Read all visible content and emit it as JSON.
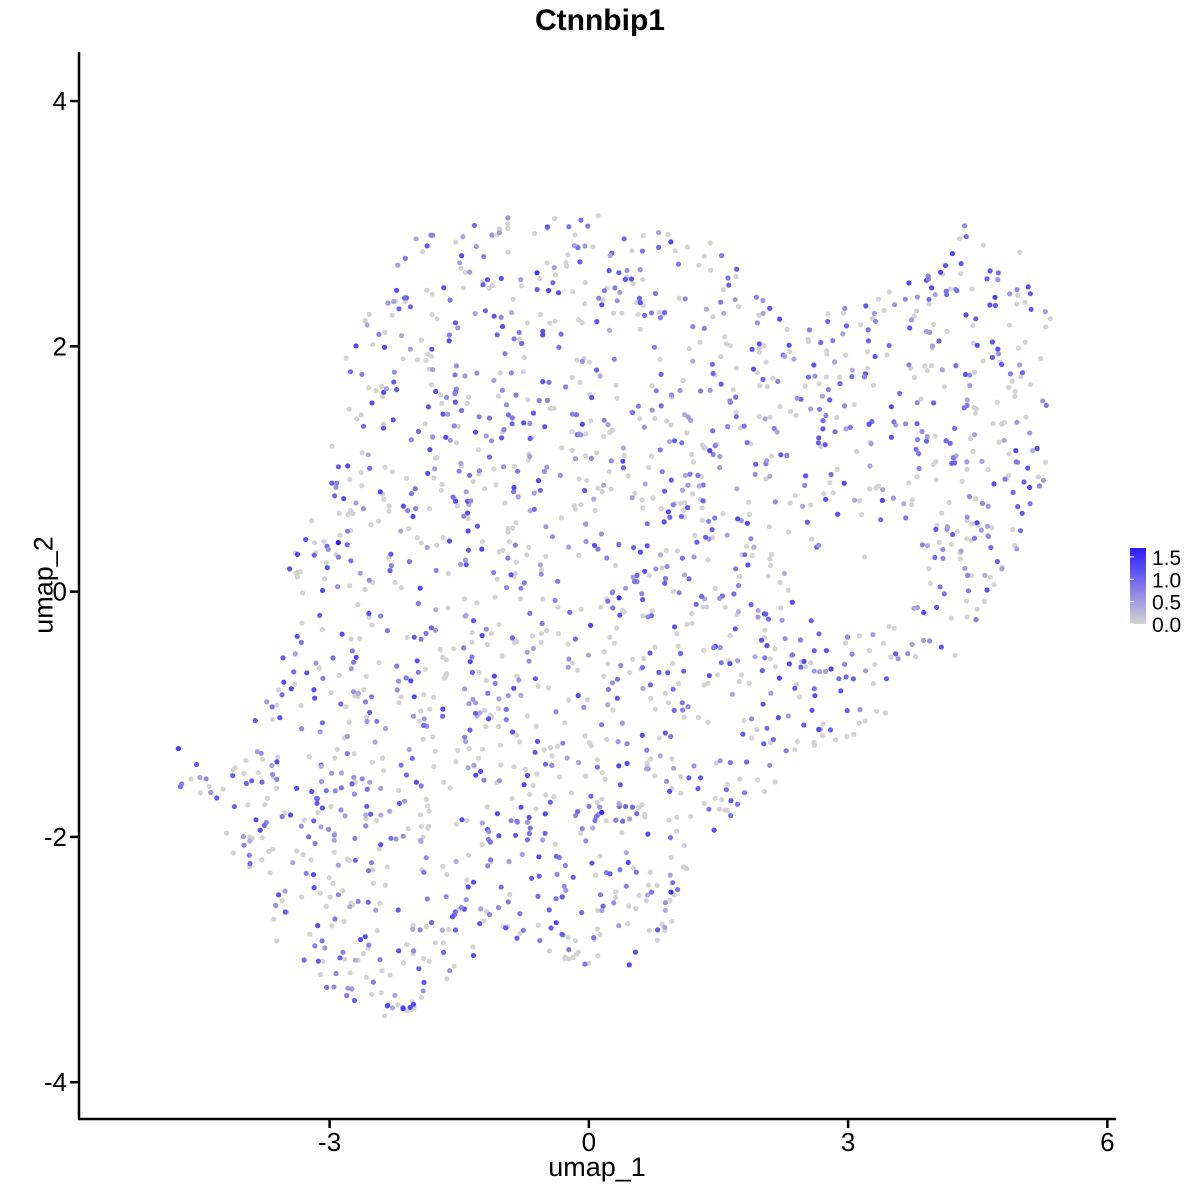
{
  "chart_data": {
    "type": "scatter",
    "title": "Ctnnbip1",
    "xlabel": "umap_1",
    "ylabel": "umap_2",
    "xlim": [
      -5.9,
      6.1
    ],
    "ylim": [
      -4.3,
      4.4
    ],
    "xticks": [
      -3,
      0,
      3,
      6
    ],
    "yticks": [
      -4,
      -2,
      0,
      2,
      4
    ],
    "grid": false,
    "legend": {
      "position": "right",
      "type": "colorbar",
      "labels": [
        "1.5",
        "1.0",
        "0.5",
        "0.0"
      ],
      "range": [
        0,
        1.7
      ],
      "colors": {
        "low": "#d3d3d3",
        "high": "#2b1cff"
      }
    },
    "point_size": 2.6,
    "n_points": 2000,
    "region_outline": [
      [
        -4.7,
        -1.3
      ],
      [
        -4.2,
        -1.5
      ],
      [
        -3.9,
        -1.1
      ],
      [
        -3.4,
        -0.3
      ],
      [
        -3.5,
        0.2
      ],
      [
        -3.0,
        1.0
      ],
      [
        -2.9,
        1.8
      ],
      [
        -2.5,
        2.4
      ],
      [
        -2.0,
        2.9
      ],
      [
        -1.2,
        3.05
      ],
      [
        -0.3,
        3.05
      ],
      [
        0.2,
        3.1
      ],
      [
        1.0,
        2.9
      ],
      [
        1.6,
        2.85
      ],
      [
        1.8,
        2.5
      ],
      [
        2.5,
        2.2
      ],
      [
        3.3,
        2.4
      ],
      [
        3.9,
        2.6
      ],
      [
        4.4,
        3.05
      ],
      [
        5.0,
        2.8
      ],
      [
        5.35,
        2.3
      ],
      [
        5.3,
        1.3
      ],
      [
        5.3,
        0.9
      ],
      [
        5.0,
        0.4
      ],
      [
        4.6,
        -0.1
      ],
      [
        4.2,
        -0.6
      ],
      [
        3.7,
        -0.6
      ],
      [
        3.3,
        -0.8
      ],
      [
        3.5,
        -1.0
      ],
      [
        3.0,
        -1.2
      ],
      [
        2.3,
        -1.5
      ],
      [
        1.4,
        -2.0
      ],
      [
        1.0,
        -2.5
      ],
      [
        0.95,
        -2.8
      ],
      [
        0.5,
        -3.05
      ],
      [
        -0.1,
        -3.05
      ],
      [
        -1.3,
        -2.7
      ],
      [
        -1.3,
        -3.05
      ],
      [
        -2.0,
        -3.4
      ],
      [
        -2.3,
        -3.5
      ],
      [
        -3.0,
        -3.25
      ],
      [
        -3.6,
        -2.9
      ],
      [
        -4.2,
        -2.3
      ],
      [
        -4.25,
        -1.7
      ],
      [
        -4.6,
        -1.8
      ],
      [
        -4.9,
        -1.4
      ]
    ],
    "empty_region": [
      [
        3.0,
        0.75
      ],
      [
        4.0,
        0.3
      ],
      [
        3.5,
        -0.2
      ],
      [
        2.7,
        -0.4
      ],
      [
        2.5,
        0.2
      ]
    ],
    "highlighted_points": [
      {
        "x": -2.9,
        "y": 0.4,
        "value": 1.7
      },
      {
        "x": 0.35,
        "y": -0.05,
        "value": 1.6
      },
      {
        "x": 0.15,
        "y": -1.8,
        "value": 1.55
      },
      {
        "x": 0.95,
        "y": -2.45,
        "value": 1.5
      },
      {
        "x": -2.15,
        "y": -3.4,
        "value": 1.45
      },
      {
        "x": -4.75,
        "y": -1.28,
        "value": 1.4
      },
      {
        "x": -0.6,
        "y": 2.6,
        "value": 1.45
      },
      {
        "x": 1.4,
        "y": 1.15,
        "value": 1.35
      },
      {
        "x": 5.1,
        "y": 0.85,
        "value": 1.3
      },
      {
        "x": 4.7,
        "y": 2.4,
        "value": 1.35
      }
    ]
  }
}
